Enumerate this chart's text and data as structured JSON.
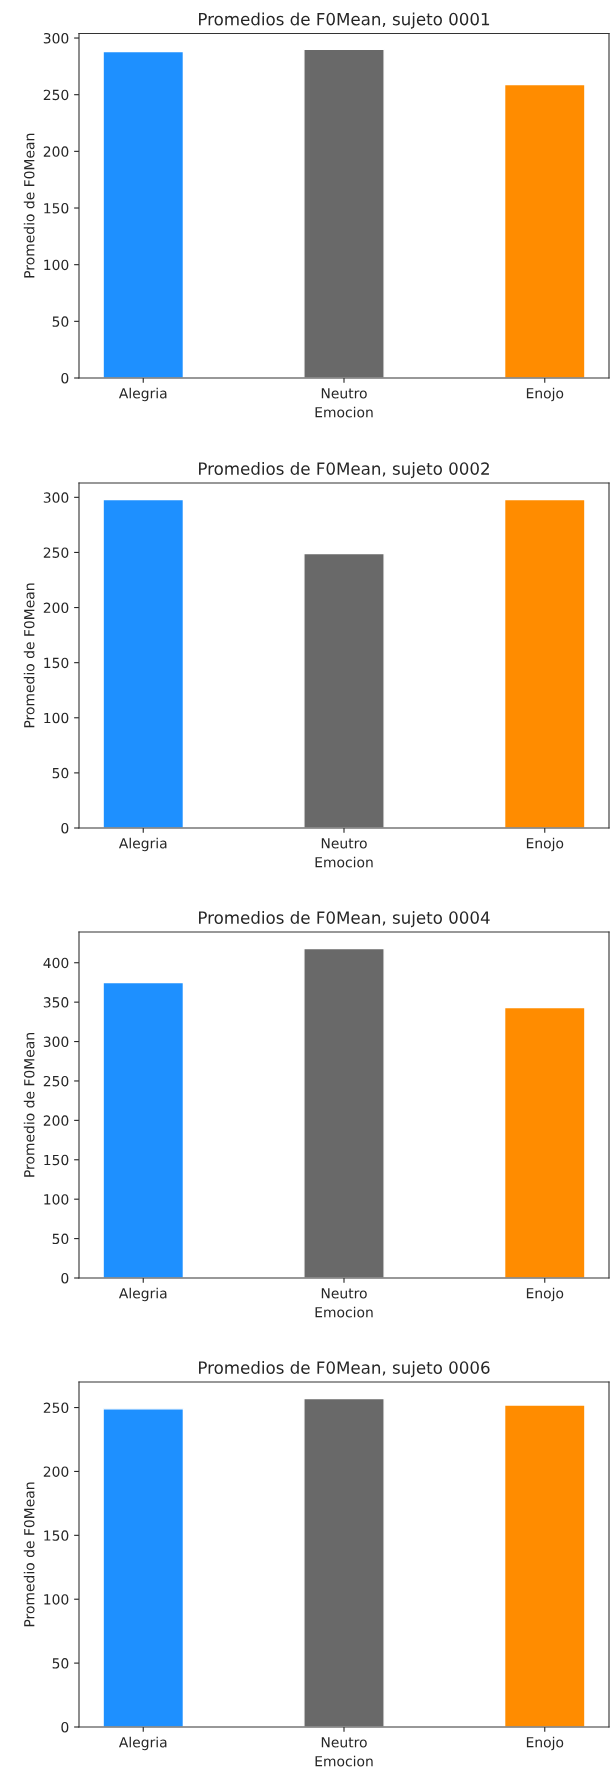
{
  "chart_data": [
    {
      "type": "bar",
      "title": "Promedios de F0Mean, sujeto 0001",
      "xlabel": "Emocion",
      "ylabel": "Promedio de F0Mean",
      "categories": [
        "Alegria",
        "Neutro",
        "Enojo"
      ],
      "values": [
        288,
        290,
        259
      ],
      "colors": [
        "#1e90ff",
        "#696969",
        "#ff8c00"
      ],
      "ylim": [
        0,
        304
      ],
      "yticks": [
        0,
        50,
        100,
        150,
        200,
        250,
        300
      ]
    },
    {
      "type": "bar",
      "title": "Promedios de F0Mean, sujeto 0002",
      "xlabel": "Emocion",
      "ylabel": "Promedio de F0Mean",
      "categories": [
        "Alegria",
        "Neutro",
        "Enojo"
      ],
      "values": [
        298,
        249,
        298
      ],
      "colors": [
        "#1e90ff",
        "#696969",
        "#ff8c00"
      ],
      "ylim": [
        0,
        313
      ],
      "yticks": [
        0,
        50,
        100,
        150,
        200,
        250,
        300
      ]
    },
    {
      "type": "bar",
      "title": "Promedios de F0Mean, sujeto 0004",
      "xlabel": "Emocion",
      "ylabel": "Promedio de F0Mean",
      "categories": [
        "Alegria",
        "Neutro",
        "Enojo"
      ],
      "values": [
        375,
        418,
        343
      ],
      "colors": [
        "#1e90ff",
        "#696969",
        "#ff8c00"
      ],
      "ylim": [
        0,
        439
      ],
      "yticks": [
        0,
        50,
        100,
        150,
        200,
        250,
        300,
        350,
        400
      ]
    },
    {
      "type": "bar",
      "title": "Promedios de F0Mean, sujeto 0006",
      "xlabel": "Emocion",
      "ylabel": "Promedio de F0Mean",
      "categories": [
        "Alegria",
        "Neutro",
        "Enojo"
      ],
      "values": [
        249,
        257,
        252
      ],
      "colors": [
        "#1e90ff",
        "#696969",
        "#ff8c00"
      ],
      "ylim": [
        0,
        270
      ],
      "yticks": [
        0,
        50,
        100,
        150,
        200,
        250
      ]
    }
  ]
}
